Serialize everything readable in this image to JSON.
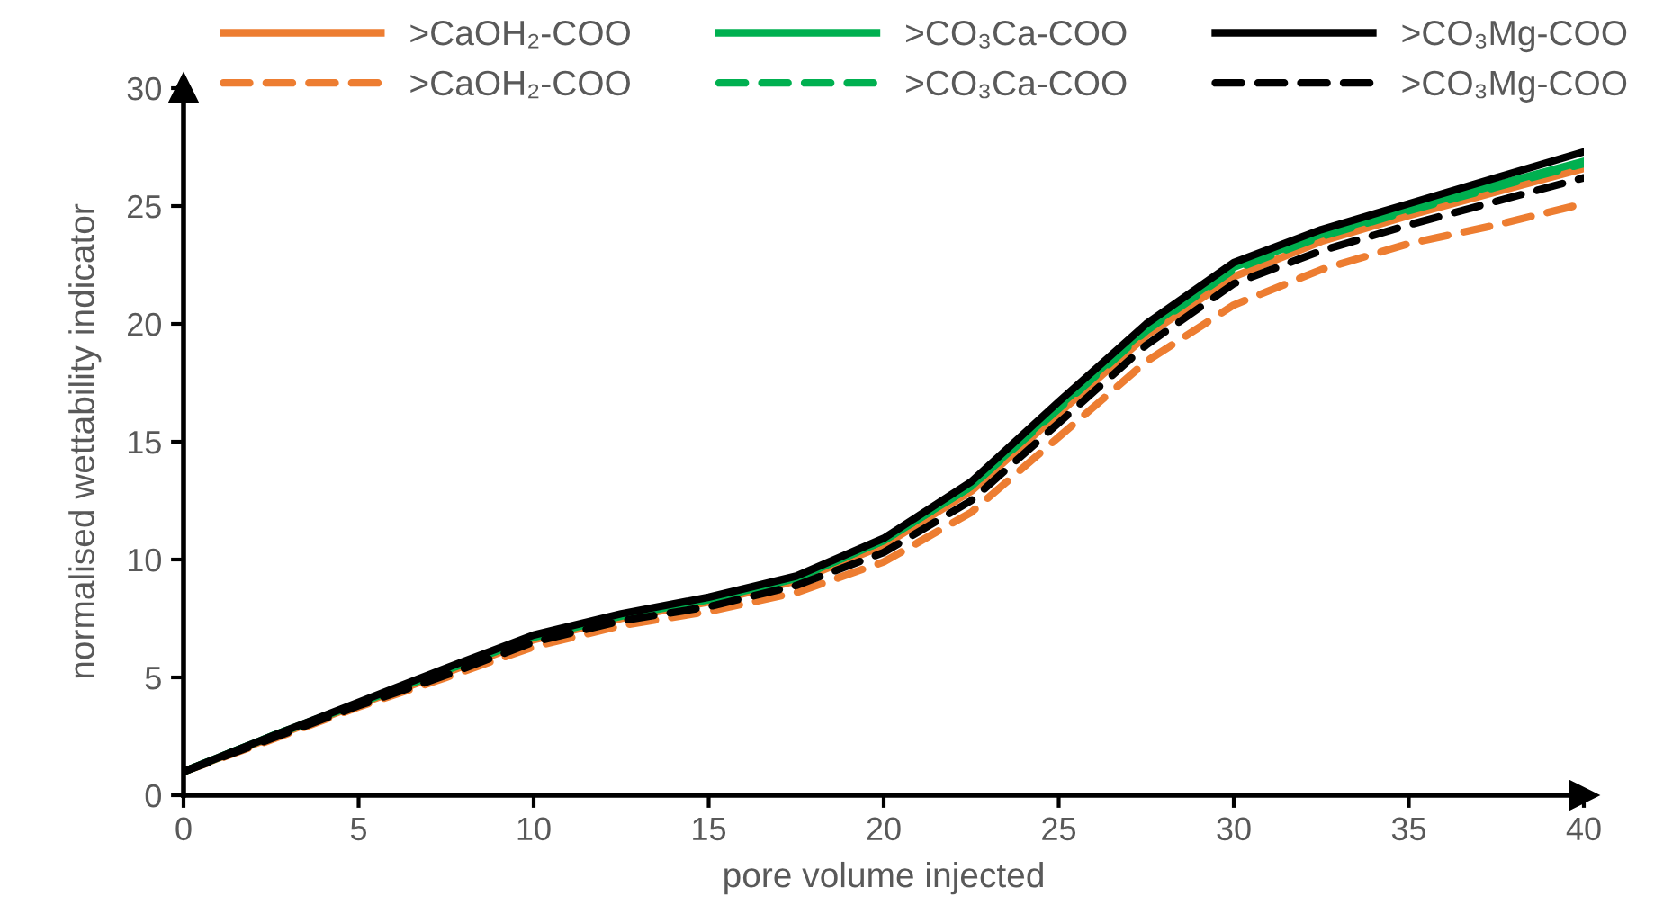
{
  "chart_data": {
    "type": "line",
    "xlabel": "pore volume injected",
    "ylabel": "normalised wettability indicator",
    "x": [
      0,
      2.5,
      5,
      7.5,
      10,
      12.5,
      15,
      17.5,
      20,
      22.5,
      25,
      27.5,
      30,
      32.5,
      35,
      37.5,
      40
    ],
    "xlim": [
      0,
      40
    ],
    "xticks": [
      0,
      5,
      10,
      15,
      20,
      25,
      30,
      35,
      40
    ],
    "ylim": [
      0,
      30
    ],
    "yticks": [
      0,
      5,
      10,
      15,
      20,
      25,
      30
    ],
    "grid": false,
    "legend": "top",
    "marker": "none",
    "series": [
      {
        "name": ">CaOH₂-COO",
        "color": "#ed7d31",
        "line_style": "solid",
        "values": [
          1,
          2.45,
          3.85,
          5.2,
          6.6,
          7.5,
          8.2,
          9.1,
          10.6,
          12.9,
          16.2,
          19.5,
          22.0,
          23.5,
          24.6,
          25.6,
          26.6
        ]
      },
      {
        "name": ">CaOH₂-COO",
        "color": "#ed7d31",
        "line_style": "dashed",
        "values": [
          1,
          2.35,
          3.75,
          5.0,
          6.3,
          7.2,
          7.8,
          8.6,
          9.9,
          12.0,
          15.2,
          18.4,
          20.8,
          22.3,
          23.4,
          24.2,
          25.1
        ]
      },
      {
        "name": ">CO₃Ca-COO",
        "color": "#00b050",
        "line_style": "solid",
        "values": [
          1,
          2.5,
          3.9,
          5.3,
          6.7,
          7.6,
          8.3,
          9.2,
          10.8,
          13.1,
          16.5,
          19.8,
          22.4,
          23.8,
          24.9,
          25.9,
          26.9
        ]
      },
      {
        "name": ">CO₃Ca-COO",
        "color": "#00b050",
        "line_style": "dashed",
        "values": [
          1,
          2.5,
          3.9,
          5.3,
          6.7,
          7.6,
          8.3,
          9.2,
          10.8,
          13.1,
          16.4,
          19.7,
          22.3,
          23.7,
          24.8,
          25.8,
          26.8
        ]
      },
      {
        "name": ">CO₃Mg-COO",
        "color": "#000000",
        "line_style": "solid",
        "values": [
          1,
          2.5,
          3.95,
          5.4,
          6.8,
          7.7,
          8.4,
          9.3,
          10.9,
          13.3,
          16.7,
          20.0,
          22.6,
          24.0,
          25.1,
          26.2,
          27.3
        ]
      },
      {
        "name": ">CO₃Mg-COO",
        "color": "#000000",
        "line_style": "dashed",
        "values": [
          1,
          2.4,
          3.8,
          5.1,
          6.5,
          7.4,
          8.0,
          8.9,
          10.3,
          12.5,
          15.8,
          19.1,
          21.7,
          23.1,
          24.2,
          25.2,
          26.2
        ]
      }
    ]
  }
}
